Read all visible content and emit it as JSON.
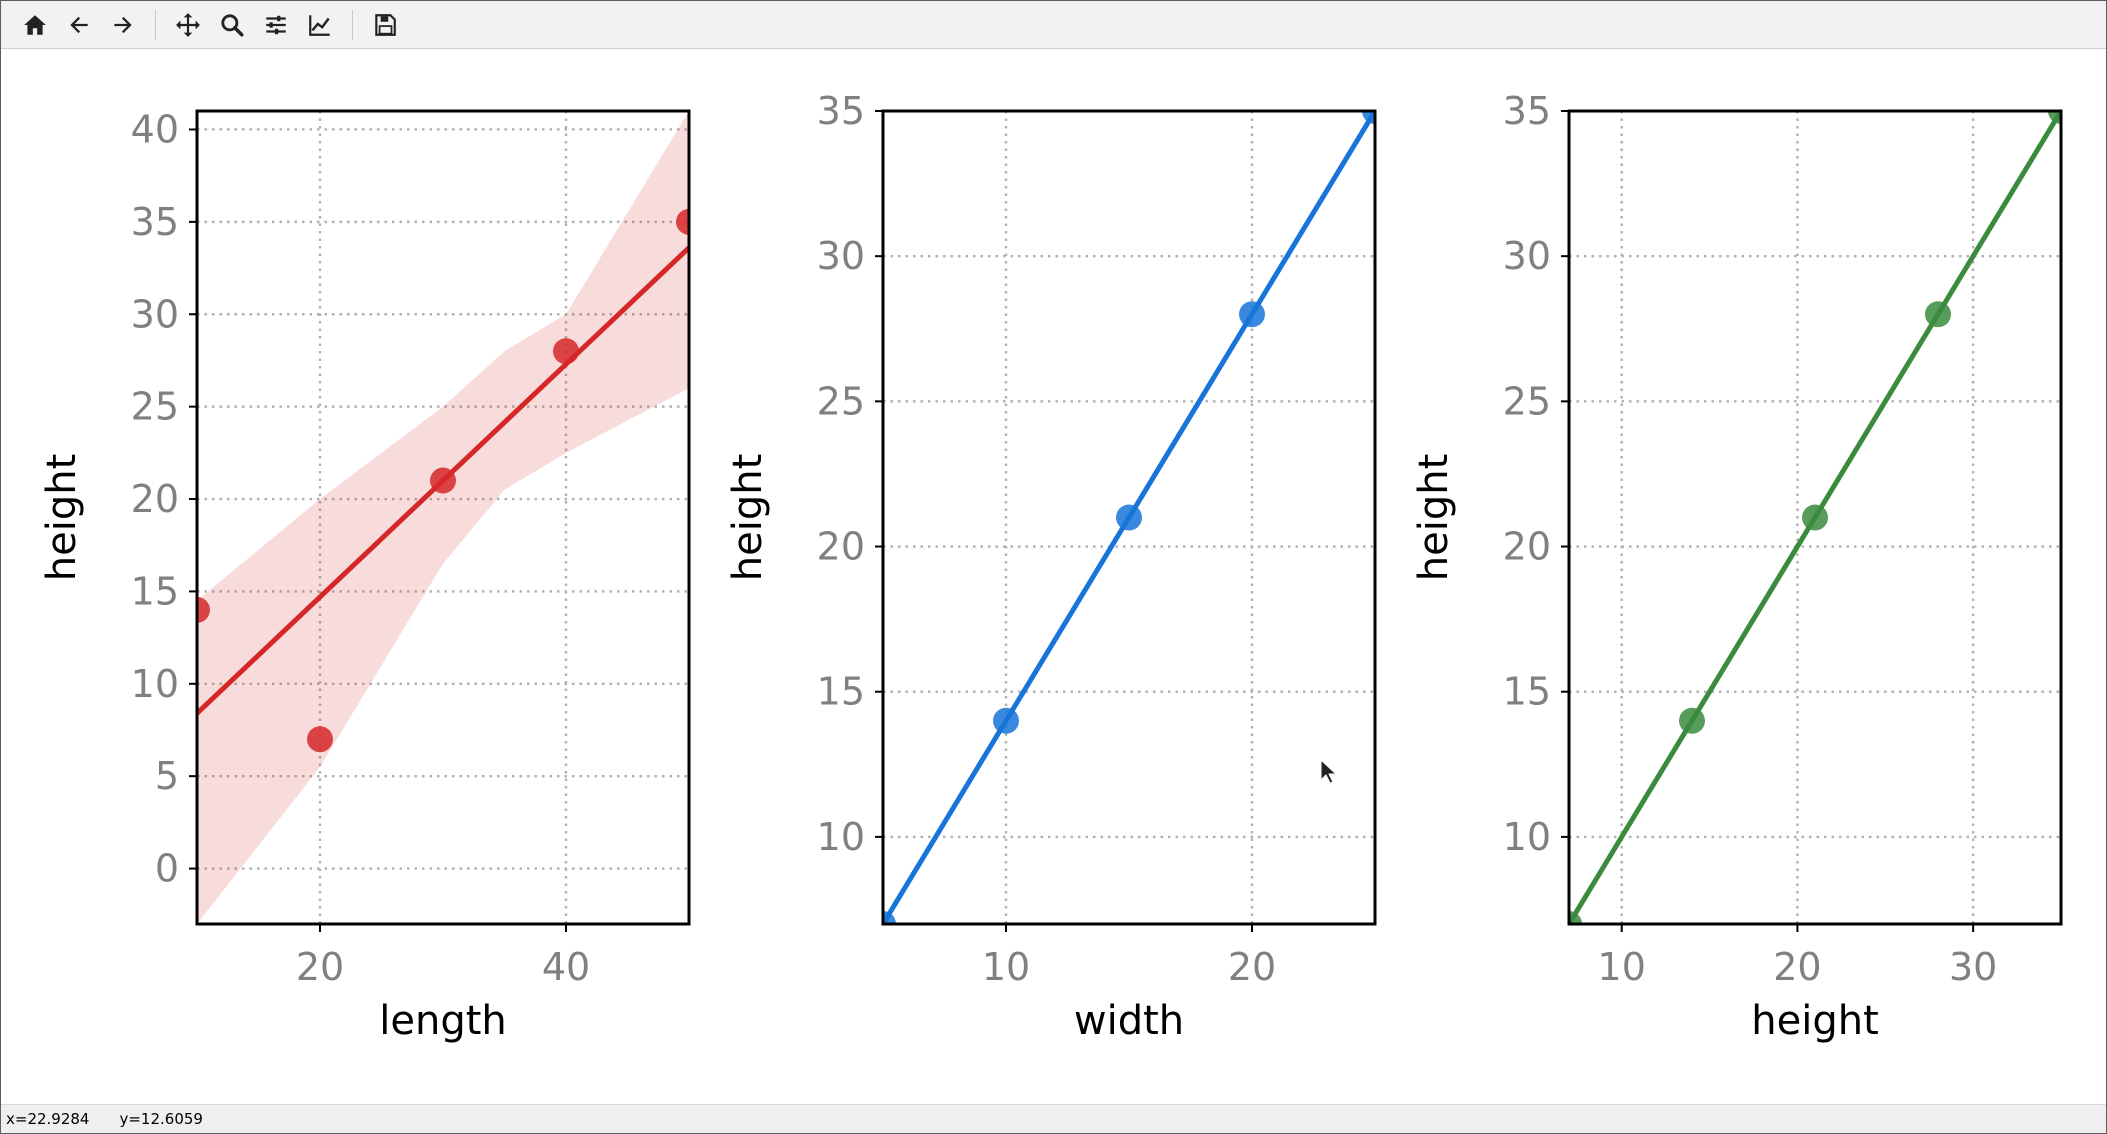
{
  "toolbar": {
    "buttons": [
      {
        "name": "home-button",
        "icon": "home-icon"
      },
      {
        "name": "back-button",
        "icon": "arrow-left-icon"
      },
      {
        "name": "forward-button",
        "icon": "arrow-right-icon"
      },
      {
        "name": "pan-button",
        "icon": "move-icon"
      },
      {
        "name": "zoom-button",
        "icon": "zoom-icon"
      },
      {
        "name": "subplots-button",
        "icon": "sliders-icon"
      },
      {
        "name": "axes-button",
        "icon": "line-chart-icon"
      },
      {
        "name": "save-button",
        "icon": "floppy-disk-icon"
      }
    ]
  },
  "status": {
    "x": "x=22.9284",
    "y": "y=12.6059"
  },
  "chart_data": [
    {
      "type": "scatter",
      "xlabel": "length",
      "ylabel": "height",
      "xlim": [
        10,
        50
      ],
      "ylim": [
        -3,
        41
      ],
      "xticks": [
        20,
        40
      ],
      "yticks": [
        0,
        5,
        10,
        15,
        20,
        25,
        30,
        35,
        40
      ],
      "grid": true,
      "color": "#d62728",
      "points": {
        "x": [
          10,
          20,
          30,
          40,
          50
        ],
        "y": [
          14,
          7,
          21,
          28,
          35
        ]
      },
      "regression": {
        "intercept": 2.1,
        "slope": 0.63
      },
      "confidence_band": {
        "x": [
          10,
          20,
          30,
          35,
          40,
          50
        ],
        "lower": [
          -3,
          5.5,
          16.5,
          20.5,
          22.5,
          26
        ],
        "upper": [
          14.5,
          20,
          25,
          28,
          30,
          41
        ]
      }
    },
    {
      "type": "scatter",
      "xlabel": "width",
      "ylabel": "height",
      "xlim": [
        5,
        25
      ],
      "ylim": [
        7,
        35
      ],
      "xticks": [
        10,
        20
      ],
      "yticks": [
        10,
        15,
        20,
        25,
        30,
        35
      ],
      "grid": true,
      "color": "#1874d8",
      "points": {
        "x": [
          5,
          10,
          15,
          20,
          25
        ],
        "y": [
          7,
          14,
          21,
          28,
          35
        ]
      },
      "regression": {
        "intercept": 0,
        "slope": 1.4
      }
    },
    {
      "type": "scatter",
      "xlabel": "height",
      "ylabel": "height",
      "xlim": [
        7,
        35
      ],
      "ylim": [
        7,
        35
      ],
      "xticks": [
        10,
        20,
        30
      ],
      "yticks": [
        10,
        15,
        20,
        25,
        30,
        35
      ],
      "grid": true,
      "color": "#3a8b3e",
      "points": {
        "x": [
          7,
          14,
          21,
          28,
          35
        ],
        "y": [
          7,
          14,
          21,
          28,
          35
        ]
      },
      "regression": {
        "intercept": 0,
        "slope": 1
      }
    }
  ]
}
